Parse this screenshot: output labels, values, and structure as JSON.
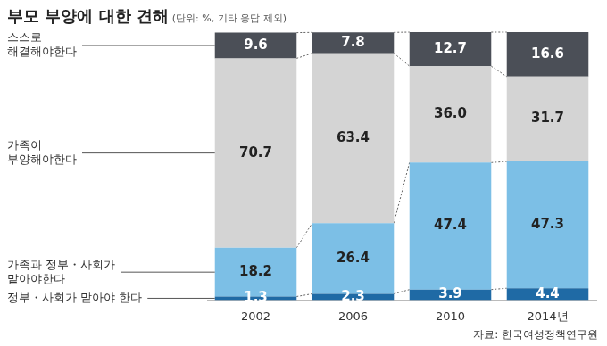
{
  "chart_data": {
    "type": "bar",
    "title": "부모 부양에 대한 견해",
    "subtitle": "(단위: %, 기타 응답 제외)",
    "source": "자료: 한국여성정책연구원",
    "categories": [
      "2002",
      "2006",
      "2010",
      "2014년"
    ],
    "series": [
      {
        "name": "정부・사회가 맡아야 한다",
        "color": "#1f6aa5",
        "values": [
          1.3,
          2.3,
          3.9,
          4.4
        ]
      },
      {
        "name": "가족과 정부・사회가\n맡아야한다",
        "color": "#7cbfe6",
        "values": [
          18.2,
          26.4,
          47.4,
          47.3
        ]
      },
      {
        "name": "가족이\n부양해야한다",
        "color": "#d4d4d4",
        "values": [
          70.7,
          63.4,
          36.0,
          31.7
        ],
        "value_labels": [
          "70.7",
          "63.4",
          "36.0",
          "31.7"
        ]
      },
      {
        "name": "스스로\n해결해야한다",
        "color": "#4b4f57",
        "values": [
          9.6,
          7.8,
          12.7,
          16.6
        ]
      }
    ],
    "stacked": true,
    "data_labels": true,
    "tick_labels": "x",
    "legend": "left",
    "ylim": [
      0,
      100
    ]
  }
}
